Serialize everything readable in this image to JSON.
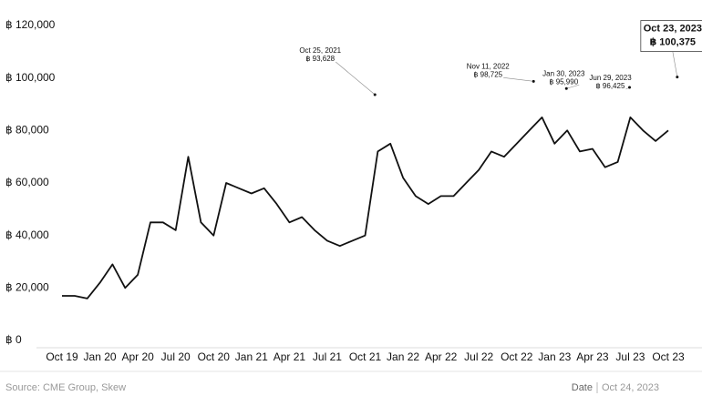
{
  "chart_data": {
    "type": "line",
    "categories": [
      "Oct 19",
      null,
      null,
      "Jan 20",
      null,
      null,
      "Apr 20",
      null,
      null,
      "Jul 20",
      null,
      null,
      "Oct 20",
      null,
      null,
      "Jan 21",
      null,
      null,
      "Apr 21",
      null,
      null,
      "Jul 21",
      null,
      null,
      "Oct 21",
      null,
      null,
      "Jan 22",
      null,
      null,
      "Apr 22",
      null,
      null,
      "Jul 22",
      null,
      null,
      "Oct 22",
      null,
      null,
      "Jan 23",
      null,
      null,
      "Apr 23",
      null,
      null,
      "Jul 23",
      null,
      null,
      "Oct 23"
    ],
    "values": [
      17000,
      17000,
      16000,
      22000,
      29000,
      20000,
      25000,
      45000,
      45000,
      42000,
      70000,
      45000,
      40000,
      60000,
      58000,
      56000,
      58000,
      52000,
      45000,
      47000,
      42000,
      38000,
      36000,
      38000,
      40000,
      72000,
      75000,
      62000,
      55000,
      52000,
      55000,
      55000,
      60000,
      65000,
      72000,
      70000,
      75000,
      80000,
      85000,
      75000,
      80000,
      72000,
      73000,
      66000,
      68000,
      85000,
      80000,
      76000,
      80000
    ],
    "color": "#111111",
    "ylim": [
      0,
      120000
    ],
    "yticks": [
      {
        "value": 0,
        "label": "฿ 0"
      },
      {
        "value": 20000,
        "label": "฿ 20,000"
      },
      {
        "value": 40000,
        "label": "฿ 40,000"
      },
      {
        "value": 60000,
        "label": "฿ 60,000"
      },
      {
        "value": 80000,
        "label": "฿ 80,000"
      },
      {
        "value": 100000,
        "label": "฿ 100,000"
      },
      {
        "value": 120000,
        "label": "฿ 120,000"
      }
    ],
    "annotations": [
      {
        "date": "Oct 25, 2021",
        "value": 93628,
        "label": "฿ 93,628"
      },
      {
        "date": "Nov 11, 2022",
        "value": 98725,
        "label": "฿ 98,725"
      },
      {
        "date": "Jan 30, 2023",
        "value": 95990,
        "label": "฿ 95,990"
      },
      {
        "date": "Jun 29, 2023",
        "value": 96425,
        "label": "฿ 96,425"
      },
      {
        "date": "Oct 23, 2023",
        "value": 100375,
        "label": "฿ 100,375"
      }
    ],
    "source": "Source: CME Group, Skew",
    "date_label": "Date",
    "date": "Oct 24, 2023"
  }
}
